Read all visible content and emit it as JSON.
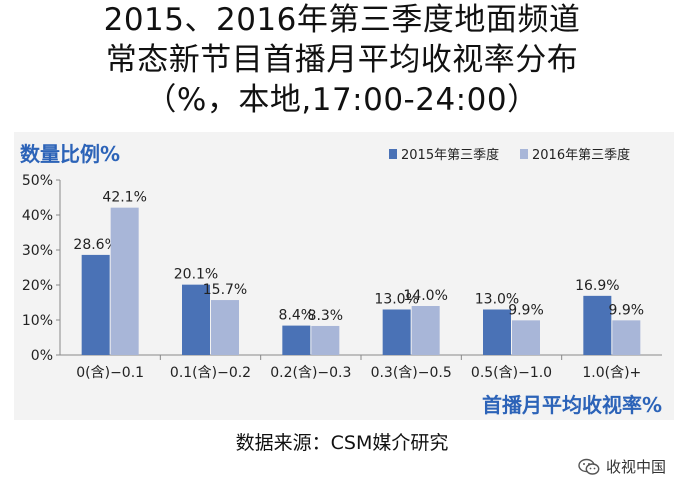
{
  "title_lines": [
    "2015、2016年第三季度地面频道",
    "常态新节目首播月平均收视率分布",
    "（%，本地,17:00-24:00）"
  ],
  "source": "数据来源：CSM媒介研究",
  "watermark": {
    "text": "收视中国",
    "icon": "wechat-icon"
  },
  "colors": {
    "series_2015": "#4a72b6",
    "series_2016": "#a8b6d8",
    "label_blue": "#2c63b8"
  },
  "chart_data": {
    "type": "bar",
    "ylabel": "数量比例%",
    "xlabel": "首播月平均收视率%",
    "categories": [
      "0(含)−0.1",
      "0.1(含)−0.2",
      "0.2(含)−0.3",
      "0.3(含)−0.5",
      "0.5(含)−1.0",
      "1.0(含)+"
    ],
    "series": [
      {
        "name": "2015年第三季度",
        "values": [
          28.6,
          20.1,
          8.4,
          13.0,
          13.0,
          16.9
        ],
        "labels": [
          "28.6%",
          "20.1%",
          "8.4%",
          "13.0%",
          "13.0%",
          "16.9%"
        ]
      },
      {
        "name": "2016年第三季度",
        "values": [
          42.1,
          15.7,
          8.3,
          14.0,
          9.9,
          9.9
        ],
        "labels": [
          "42.1%",
          "15.7%",
          "8.3%",
          "14.0%",
          "9.9%",
          "9.9%"
        ]
      }
    ],
    "ylim": [
      0,
      50
    ],
    "yticks": [
      "0%",
      "10%",
      "20%",
      "30%",
      "40%",
      "50%"
    ],
    "ytick_values": [
      0,
      10,
      20,
      30,
      40,
      50
    ],
    "legend_position": "top-right",
    "grid": false
  }
}
